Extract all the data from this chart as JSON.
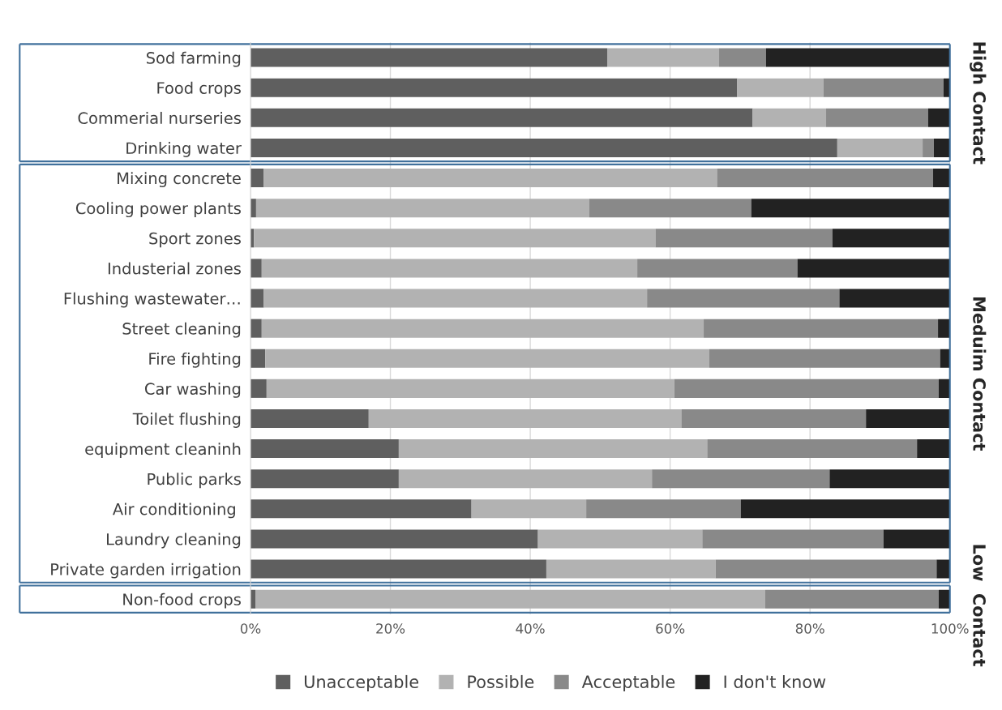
{
  "chart_data": {
    "type": "bar",
    "orientation": "horizontal",
    "stacked": true,
    "categories": [
      "Sod farming",
      "Food crops",
      "Commerial nurseries",
      "Drinking water",
      "Mixing concrete",
      "Cooling power plants",
      "Sport zones",
      "Industerial zones",
      "Flushing wastewater…",
      "Street cleaning",
      "Fire fighting",
      "Car washing",
      "Toilet flushing",
      "equipment cleaninh",
      "Public parks",
      "Air conditioning ",
      "Laundry cleaning",
      "Private garden irrigation",
      "Non-food crops"
    ],
    "series": [
      {
        "name": "Unacceptable",
        "color": "#5f5f5f",
        "values": [
          51.0,
          69.6,
          71.8,
          83.9,
          1.9,
          0.8,
          0.5,
          1.6,
          1.9,
          1.6,
          2.1,
          2.3,
          16.9,
          21.2,
          21.2,
          31.6,
          41.1,
          42.3,
          0.7
        ]
      },
      {
        "name": "Possible",
        "color": "#b2b2b2",
        "values": [
          16.0,
          12.3,
          10.5,
          12.2,
          64.8,
          47.6,
          57.4,
          53.7,
          54.8,
          63.2,
          63.5,
          58.3,
          44.7,
          44.1,
          36.2,
          16.4,
          23.5,
          24.2,
          72.9
        ]
      },
      {
        "name": "Acceptable",
        "color": "#898989",
        "values": [
          6.7,
          17.2,
          14.6,
          1.6,
          30.9,
          23.2,
          25.3,
          22.9,
          27.5,
          33.5,
          33.0,
          37.8,
          26.4,
          30.0,
          25.4,
          22.1,
          25.9,
          31.6,
          24.8
        ]
      },
      {
        "name": "I don't know",
        "color": "#222222",
        "values": [
          26.3,
          0.9,
          3.1,
          2.3,
          2.4,
          28.4,
          16.8,
          21.8,
          15.8,
          1.7,
          1.4,
          1.6,
          12.0,
          4.7,
          17.2,
          29.9,
          9.5,
          1.9,
          1.6
        ]
      }
    ],
    "xlim": [
      0,
      100
    ],
    "xticks": [
      {
        "value": 0,
        "label": "0%"
      },
      {
        "value": 20,
        "label": "20%"
      },
      {
        "value": 40,
        "label": "40%"
      },
      {
        "value": 60,
        "label": "60%"
      },
      {
        "value": 80,
        "label": "80%"
      },
      {
        "value": 100,
        "label": "100%"
      }
    ],
    "grid": "x",
    "legend": "bottom",
    "annotations": [
      "High Contact",
      "Meduim Contact",
      "Low  Contact"
    ]
  }
}
